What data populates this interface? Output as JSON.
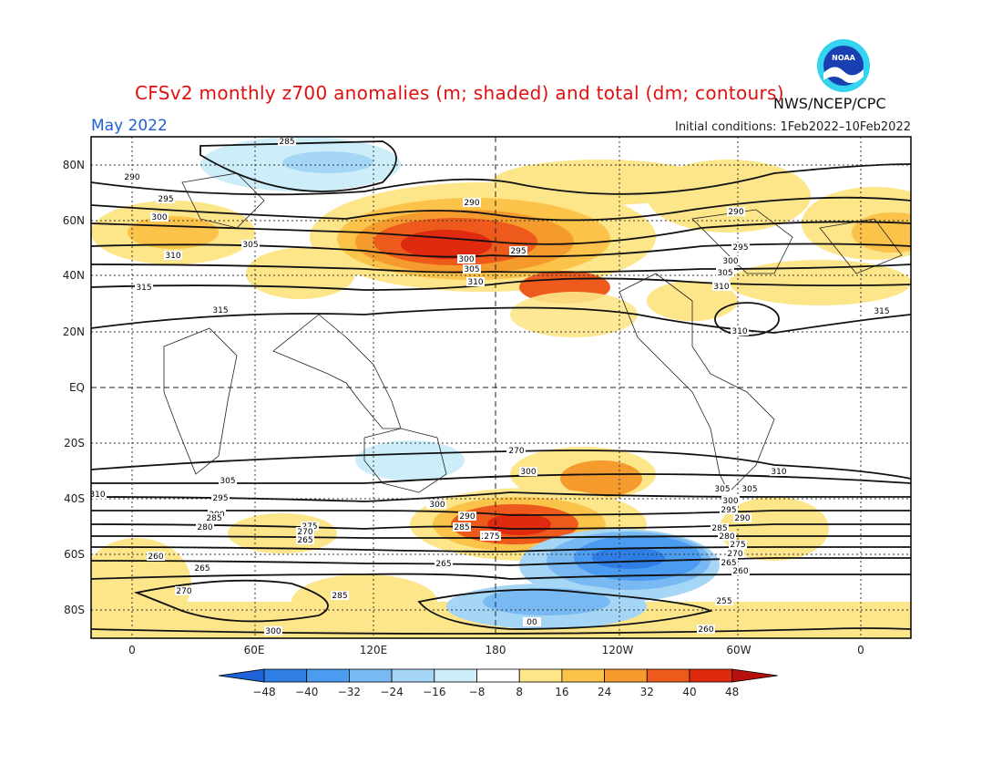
{
  "title": "CFSv2 monthly z700 anomalies (m; shaded) and total (dm; contours)",
  "month": "May 2022",
  "agency": "NWS/NCEP/CPC",
  "logo_text": "NOAA",
  "initial_conditions": "Initial conditions: 1Feb2022–10Feb2022",
  "lat_labels": [
    "80N",
    "60N",
    "40N",
    "20N",
    "EQ",
    "20S",
    "40S",
    "60S",
    "80S"
  ],
  "lon_labels": [
    "0",
    "60E",
    "120E",
    "180",
    "120W",
    "60W",
    "0"
  ],
  "colorbar": {
    "labels": [
      "−48",
      "−40",
      "−32",
      "−24",
      "−16",
      "−8",
      "8",
      "16",
      "24",
      "32",
      "40",
      "48"
    ],
    "colors": [
      "#1e62d8",
      "#2f7ee6",
      "#4b9bf0",
      "#78b9f4",
      "#a6d6f6",
      "#cdeef8",
      "#ffffff",
      "#fde58a",
      "#fbc34a",
      "#f59a2c",
      "#ee5a1c",
      "#e02a10",
      "#b80f0a"
    ]
  },
  "contour_labels": [
    "285",
    "290",
    "295",
    "300",
    "305",
    "310",
    "315",
    "290",
    "300",
    "305",
    "310",
    "295",
    "290",
    "295",
    "300",
    "305",
    "310",
    "315",
    "315",
    "310",
    "305",
    "300",
    "295",
    "290",
    "285",
    "280",
    "275",
    "270",
    "265",
    "260",
    "255",
    "00",
    "310",
    "305",
    "295",
    "290",
    "285",
    "280",
    "275",
    "270",
    "265",
    "260",
    "265",
    "270",
    "285",
    "310",
    "305",
    "300",
    "295",
    "290",
    "285",
    "280",
    "275",
    "270",
    "265",
    "260",
    "300",
    "300",
    "310",
    "305"
  ]
}
